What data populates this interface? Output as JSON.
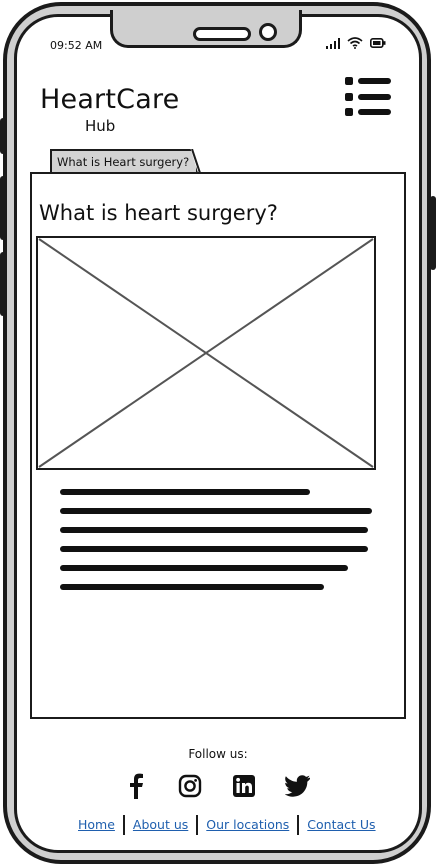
{
  "status_bar": {
    "time": "09:52 AM"
  },
  "header": {
    "logo_title": "HeartCare",
    "logo_subtitle": "Hub"
  },
  "tabs": [
    {
      "label": "What is Heart surgery?"
    }
  ],
  "main": {
    "title": "What is heart surgery?"
  },
  "footer": {
    "follow_label": "Follow us:",
    "socials": [
      "facebook-icon",
      "instagram-icon",
      "linkedin-icon",
      "twitter-icon"
    ],
    "links": [
      {
        "label": "Home"
      },
      {
        "label": "About us"
      },
      {
        "label": "Our locations"
      },
      {
        "label": "Contact Us"
      }
    ]
  },
  "colors": {
    "link": "#1f5fae",
    "frame": "#1b1b1b",
    "frame_fill": "#cfcfcf",
    "tab_fill": "#d3d3d3"
  }
}
